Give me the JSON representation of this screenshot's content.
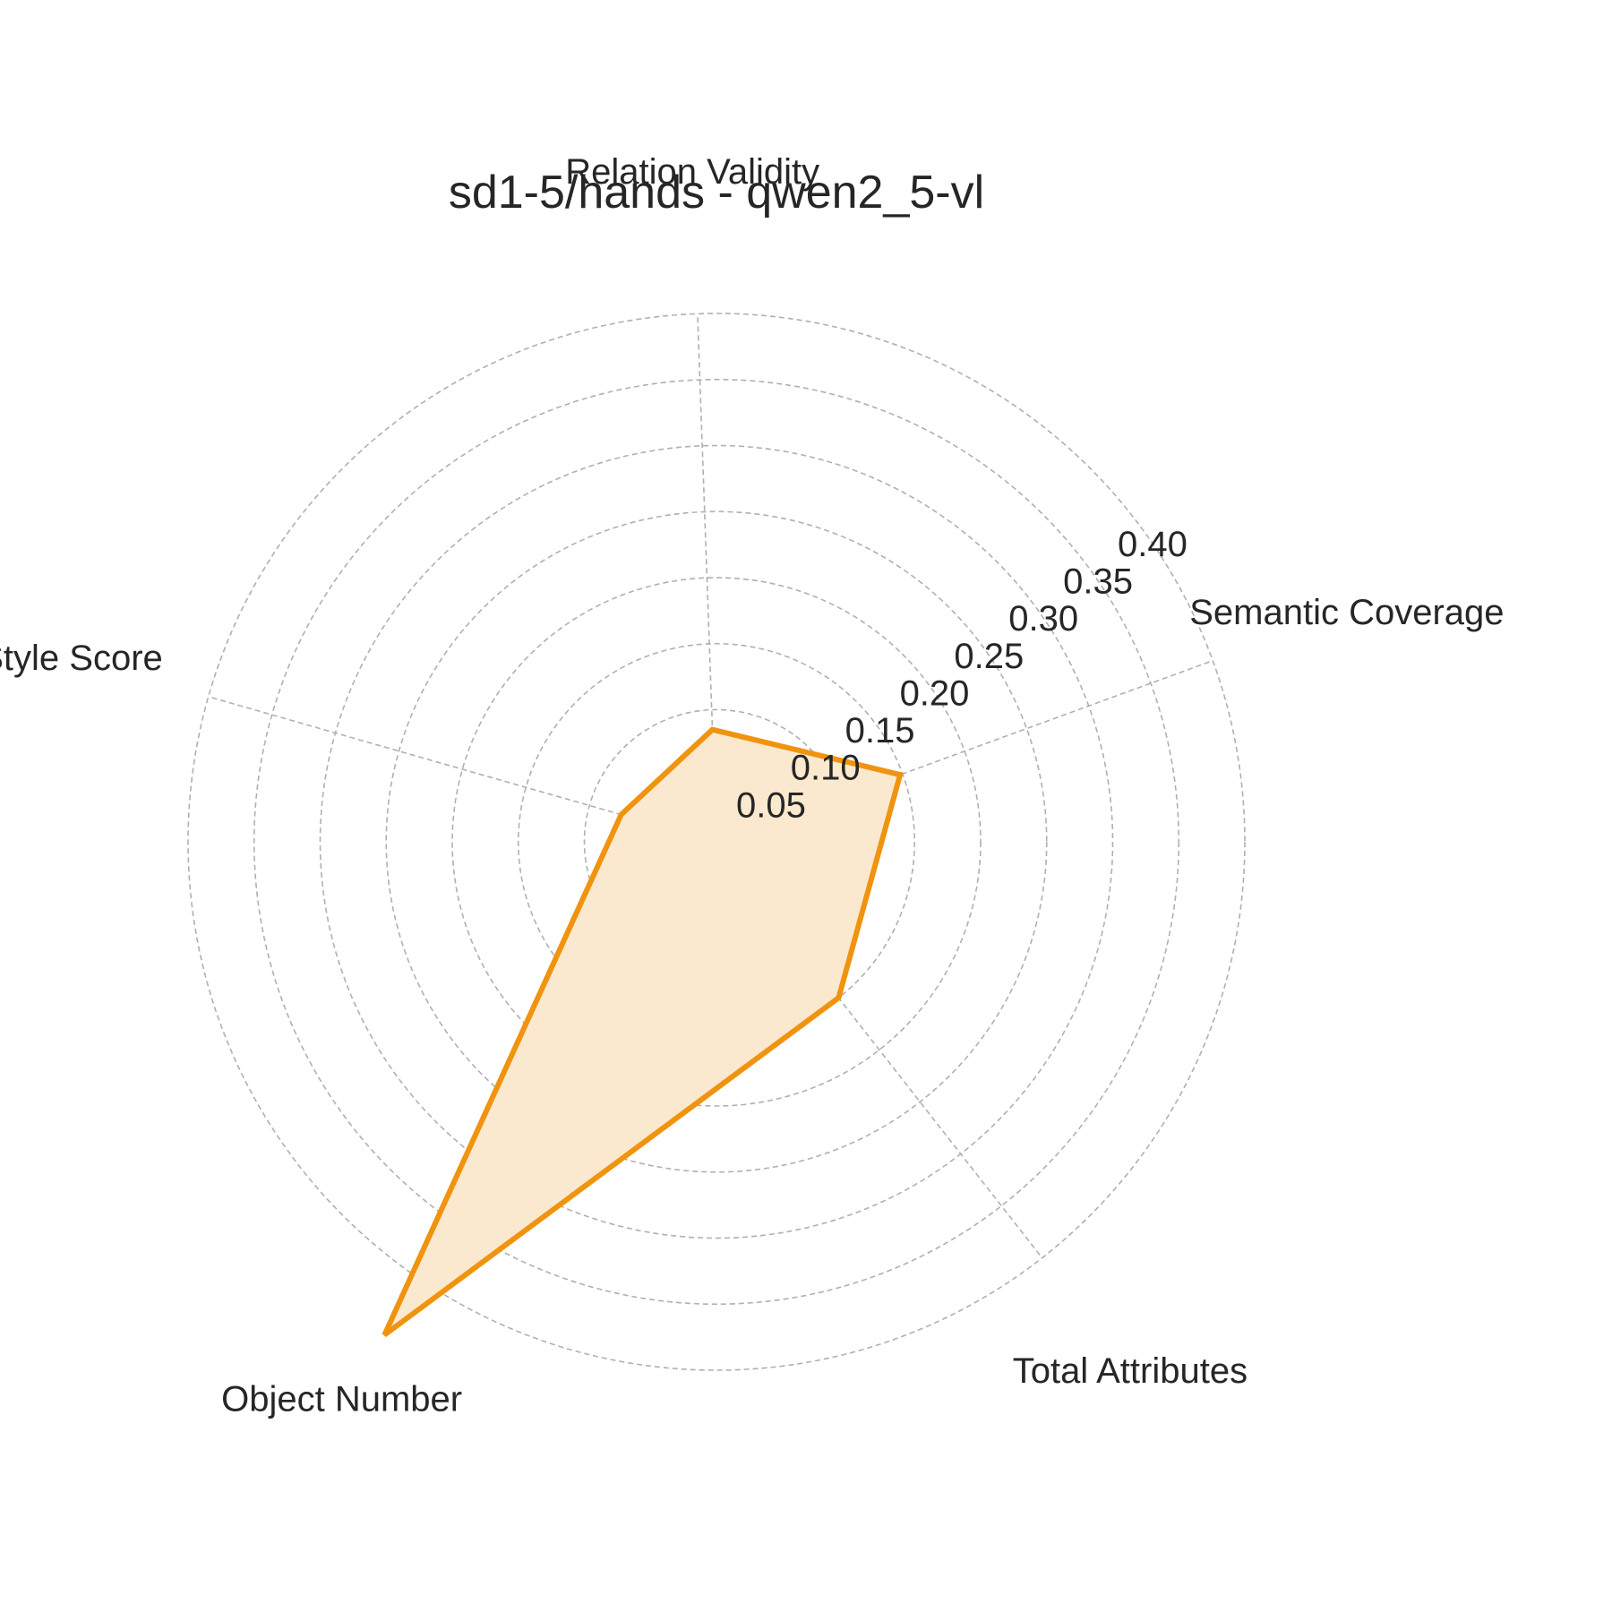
{
  "chart_data": {
    "type": "radar",
    "title": "sd1-5/hands - qwen2_5-vl",
    "axes": [
      "Semantic Coverage",
      "Relation Validity",
      "Style Score",
      "Object Number",
      "Total Attributes"
    ],
    "radial_ticks": [
      "0.05",
      "0.10",
      "0.15",
      "0.20",
      "0.25",
      "0.30",
      "0.35",
      "0.40"
    ],
    "rlim": [
      0,
      0.4
    ],
    "grid": true,
    "series": [
      {
        "values": [
          0.148,
          0.085,
          0.075,
          0.45,
          0.15
        ],
        "color": "#f0930f",
        "fill_color": "#fbe9cf"
      }
    ]
  }
}
